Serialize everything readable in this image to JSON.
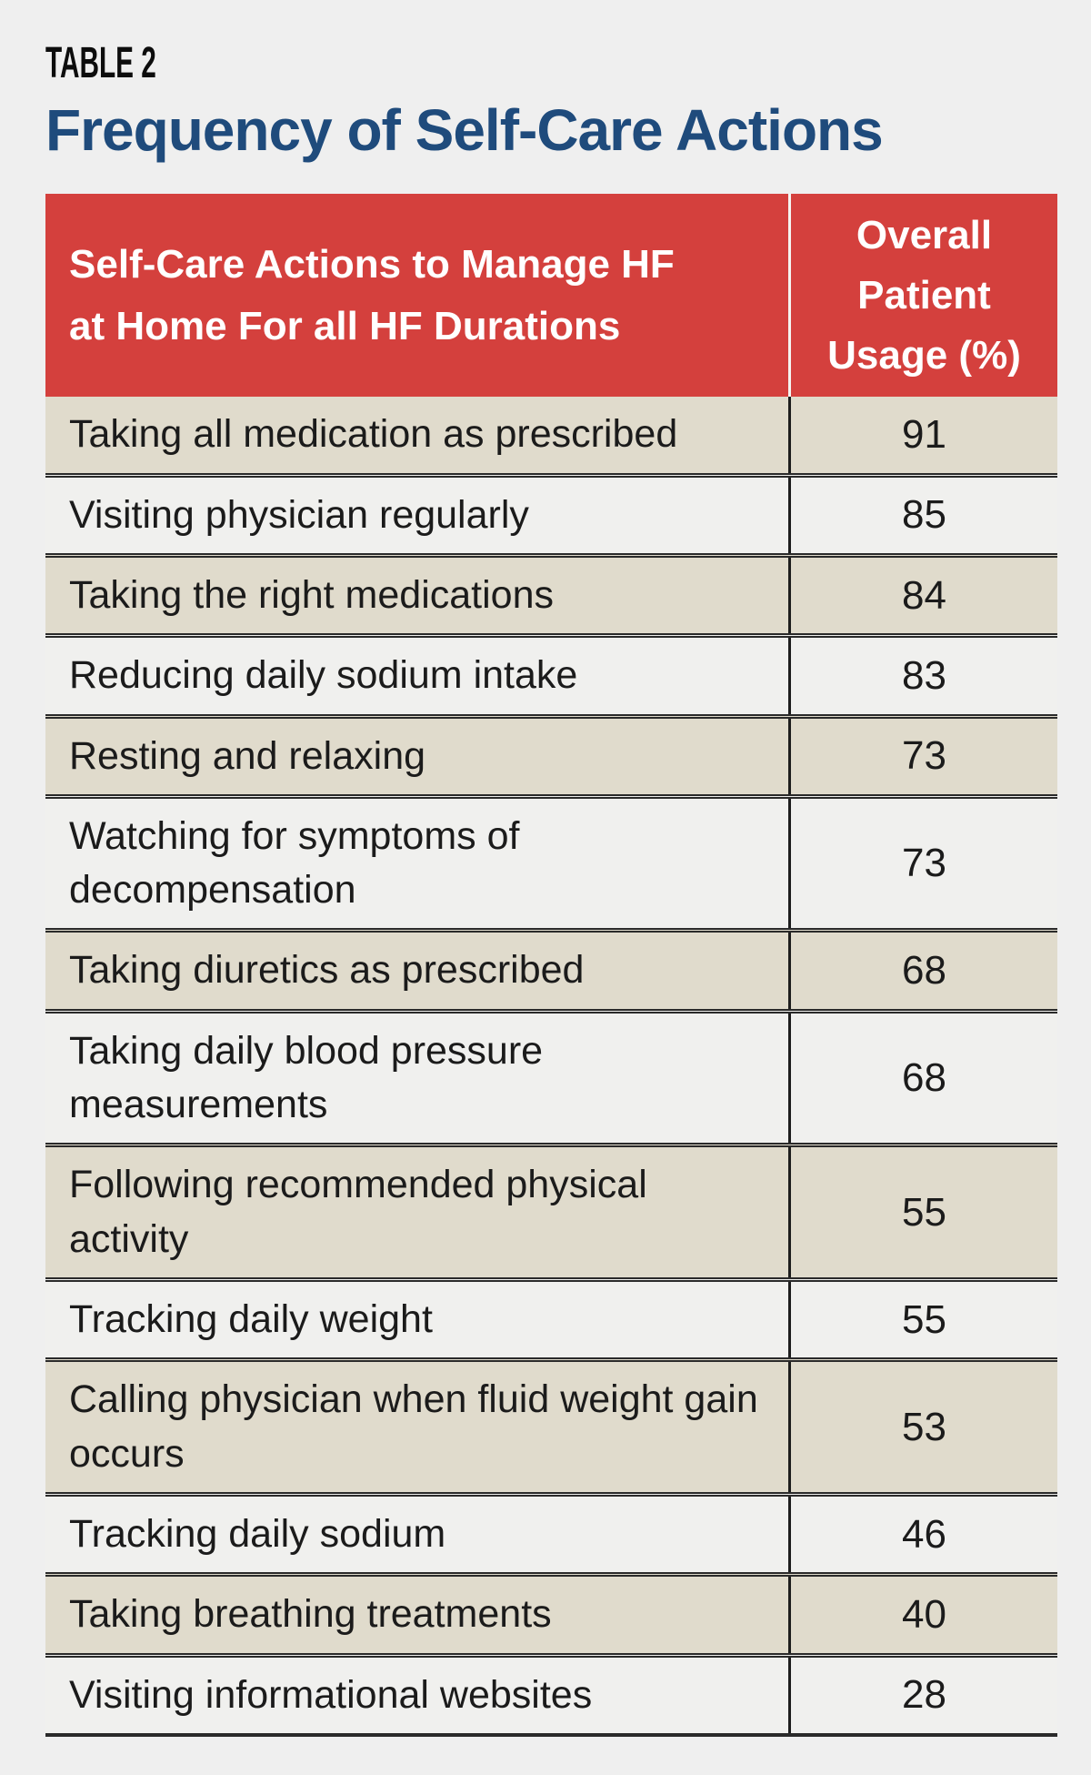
{
  "heading": {
    "kicker": "TABLE 2",
    "title": "Frequency of Self-Care Actions"
  },
  "chart_data": {
    "type": "table",
    "title": "Frequency of Self-Care Actions",
    "header": {
      "action_col": "Self-Care Actions to Manage HF at Home For all HF Durations",
      "action_col_lines": [
        "Self-Care Actions to Manage HF",
        "at Home For all HF Durations"
      ],
      "usage_col": "Overall Patient Usage (%)",
      "usage_col_lines": [
        "Overall",
        "Patient",
        "Usage (%)"
      ]
    },
    "rows": [
      {
        "action": "Taking all medication as prescribed",
        "usage": 91
      },
      {
        "action": "Visiting physician regularly",
        "usage": 85
      },
      {
        "action": "Taking the right medications",
        "usage": 84
      },
      {
        "action": "Reducing daily sodium intake",
        "usage": 83
      },
      {
        "action": "Resting and relaxing",
        "usage": 73
      },
      {
        "action": "Watching for symptoms of decompensation",
        "usage": 73
      },
      {
        "action": "Taking diuretics as prescribed",
        "usage": 68
      },
      {
        "action": "Taking daily blood pressure measurements",
        "usage": 68
      },
      {
        "action": "Following recommended physical activity",
        "usage": 55
      },
      {
        "action": "Tracking daily weight",
        "usage": 55
      },
      {
        "action": "Calling physician when fluid weight gain occurs",
        "usage": 53
      },
      {
        "action": "Tracking daily sodium",
        "usage": 46
      },
      {
        "action": "Taking breathing treatments",
        "usage": 40
      },
      {
        "action": "Visiting informational websites",
        "usage": 28
      }
    ]
  },
  "colors": {
    "page_bg": "#efefef",
    "header_bg": "#d4403d",
    "header_text": "#ffffff",
    "header_divider": "#f5f4f2",
    "row_alt_bg": "#e0dbcc",
    "row_bg": "#f0f0ee",
    "body_divider": "#1d1d1d",
    "row_border": "#2a2a2a",
    "title_color": "#1f4b7c",
    "kicker_color": "#0d0d0d",
    "text_color": "#1b1b1b"
  }
}
